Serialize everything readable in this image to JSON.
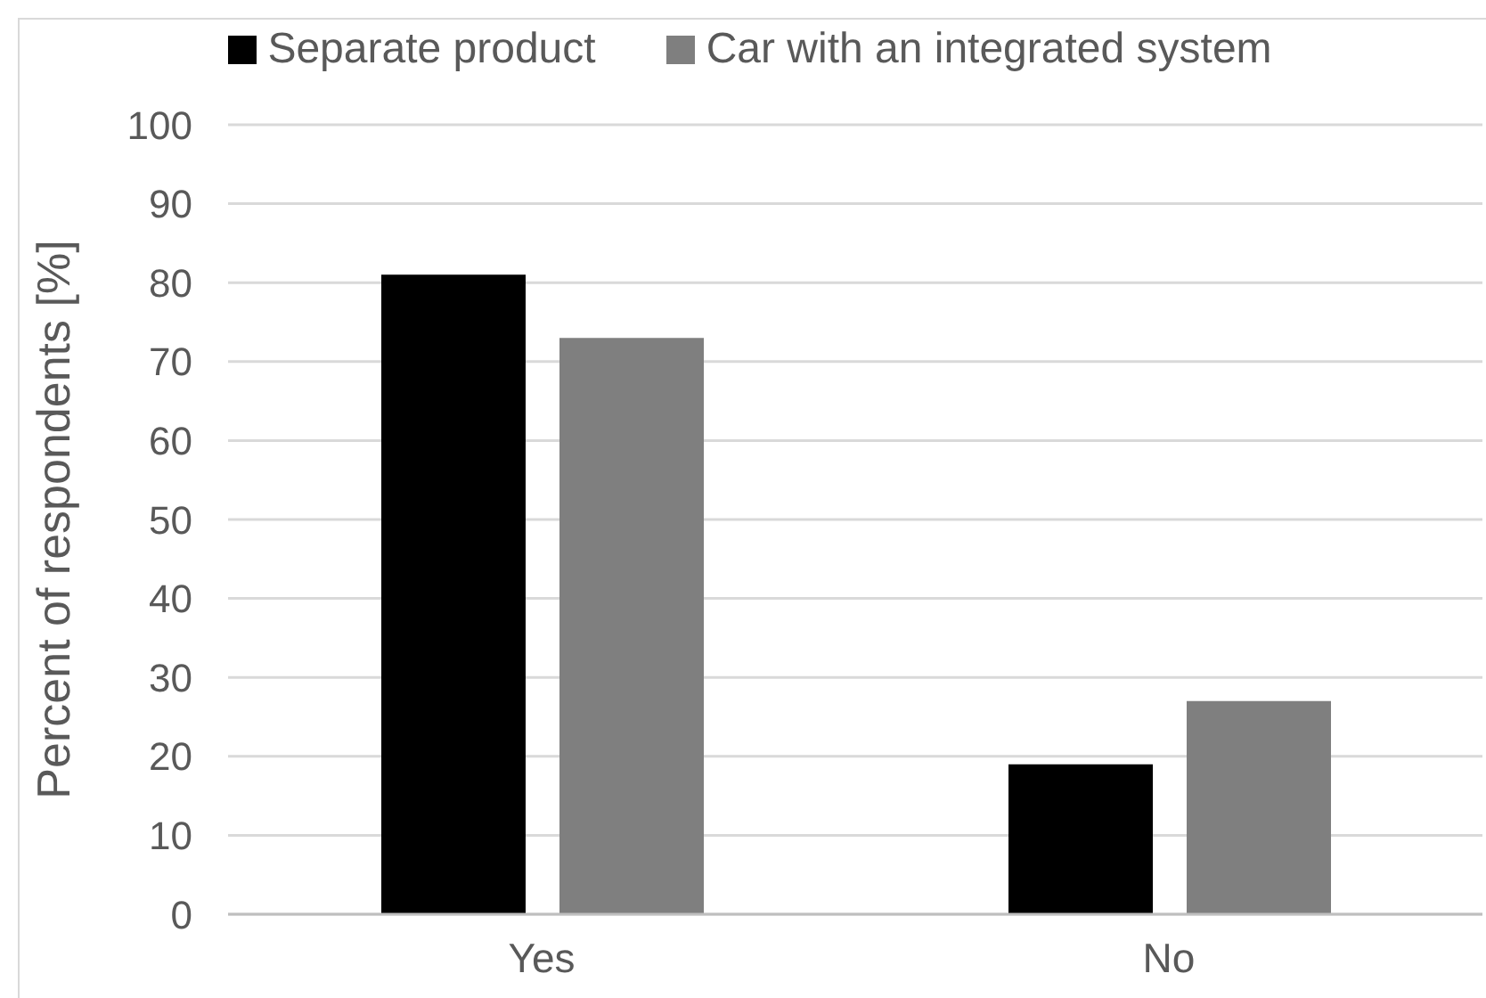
{
  "chart_data": {
    "type": "bar",
    "ylabel": "Percent of respondents [%]",
    "categories": [
      "Yes",
      "No"
    ],
    "series": [
      {
        "name": "Separate product",
        "color": "#000000",
        "values": [
          81,
          19
        ]
      },
      {
        "name": "Car with an integrated system",
        "color": "#7f7f7f",
        "values": [
          73,
          27
        ]
      }
    ],
    "ylim": [
      0,
      100
    ],
    "yticks": [
      0,
      10,
      20,
      30,
      40,
      50,
      60,
      70,
      80,
      90,
      100
    ],
    "grid": "y",
    "legend": "top"
  }
}
